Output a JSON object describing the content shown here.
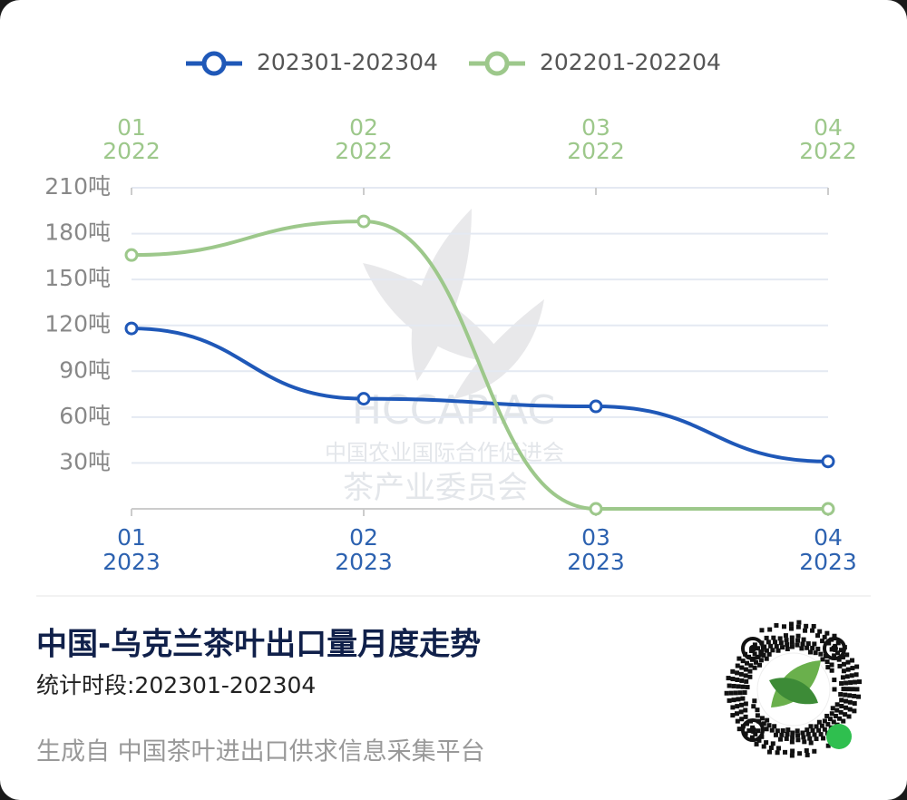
{
  "chart_data": {
    "type": "line",
    "title": "中国-乌克兰茶叶出口量月度走势",
    "subtitle": "统计时段:202301-202304",
    "footer": "生成自  中国茶叶进出口供求信息采集平台",
    "watermark": [
      "HCCAPIAC",
      "中国农业国际合作促进会",
      "茶产业委员会"
    ],
    "categories": [
      [
        "01",
        "2023"
      ],
      [
        "02",
        "2023"
      ],
      [
        "03",
        "2023"
      ],
      [
        "04",
        "2023"
      ]
    ],
    "top_categories": [
      [
        "01",
        "2022"
      ],
      [
        "02",
        "2022"
      ],
      [
        "03",
        "2022"
      ],
      [
        "04",
        "2022"
      ]
    ],
    "ylim": [
      0,
      210
    ],
    "yticks": [
      {
        "value": 30,
        "label": "30吨"
      },
      {
        "value": 60,
        "label": "60吨"
      },
      {
        "value": 90,
        "label": "90吨"
      },
      {
        "value": 120,
        "label": "120吨"
      },
      {
        "value": 150,
        "label": "150吨"
      },
      {
        "value": 180,
        "label": "180吨"
      },
      {
        "value": 210,
        "label": "210吨"
      }
    ],
    "grid": true,
    "smooth": true,
    "legend": "top",
    "series": [
      {
        "name": "202301-202304",
        "color": "#1f58b8",
        "x_axis": "bottom",
        "values": [
          118,
          72,
          67,
          31
        ]
      },
      {
        "name": "202201-202204",
        "color": "#9dc88b",
        "x_axis": "top",
        "values": [
          166,
          188,
          0,
          0
        ]
      }
    ]
  }
}
